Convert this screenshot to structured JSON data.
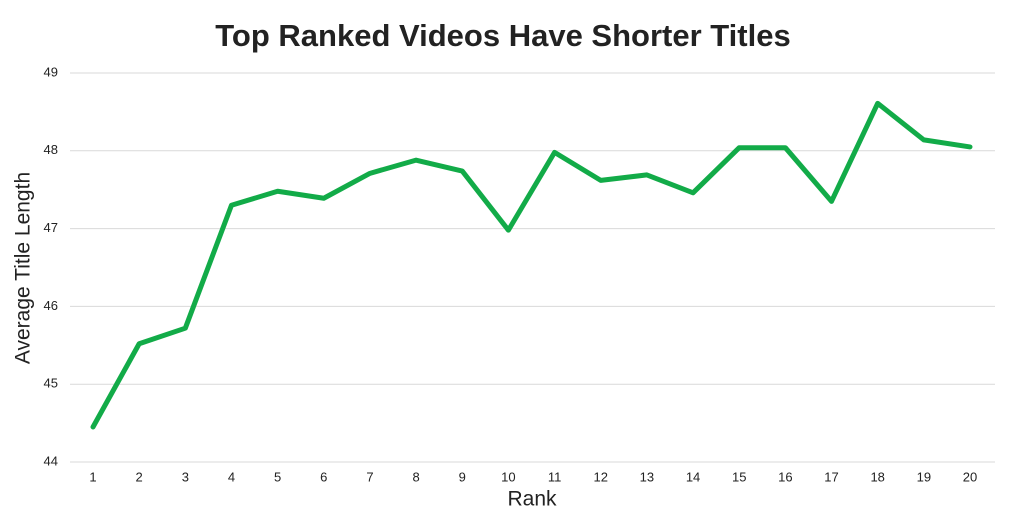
{
  "chart_data": {
    "type": "line",
    "title": "Top Ranked Videos Have Shorter Titles",
    "x_label": "Rank",
    "y_label": "Average Title Length",
    "categories": [
      "1",
      "2",
      "3",
      "4",
      "5",
      "6",
      "7",
      "8",
      "9",
      "10",
      "11",
      "12",
      "13",
      "14",
      "15",
      "16",
      "17",
      "18",
      "19",
      "20"
    ],
    "series": [
      {
        "name": "Average Title Length",
        "color": "#12ab48",
        "values": [
          44.45,
          45.52,
          45.72,
          47.3,
          47.48,
          47.39,
          47.71,
          47.88,
          47.74,
          46.98,
          47.98,
          47.62,
          47.69,
          47.46,
          48.04,
          48.04,
          47.35,
          48.61,
          48.14,
          48.05
        ]
      }
    ],
    "ylim": [
      44,
      49
    ],
    "yticks": [
      44,
      45,
      46,
      47,
      48,
      49
    ],
    "grid": true,
    "legend": false
  }
}
